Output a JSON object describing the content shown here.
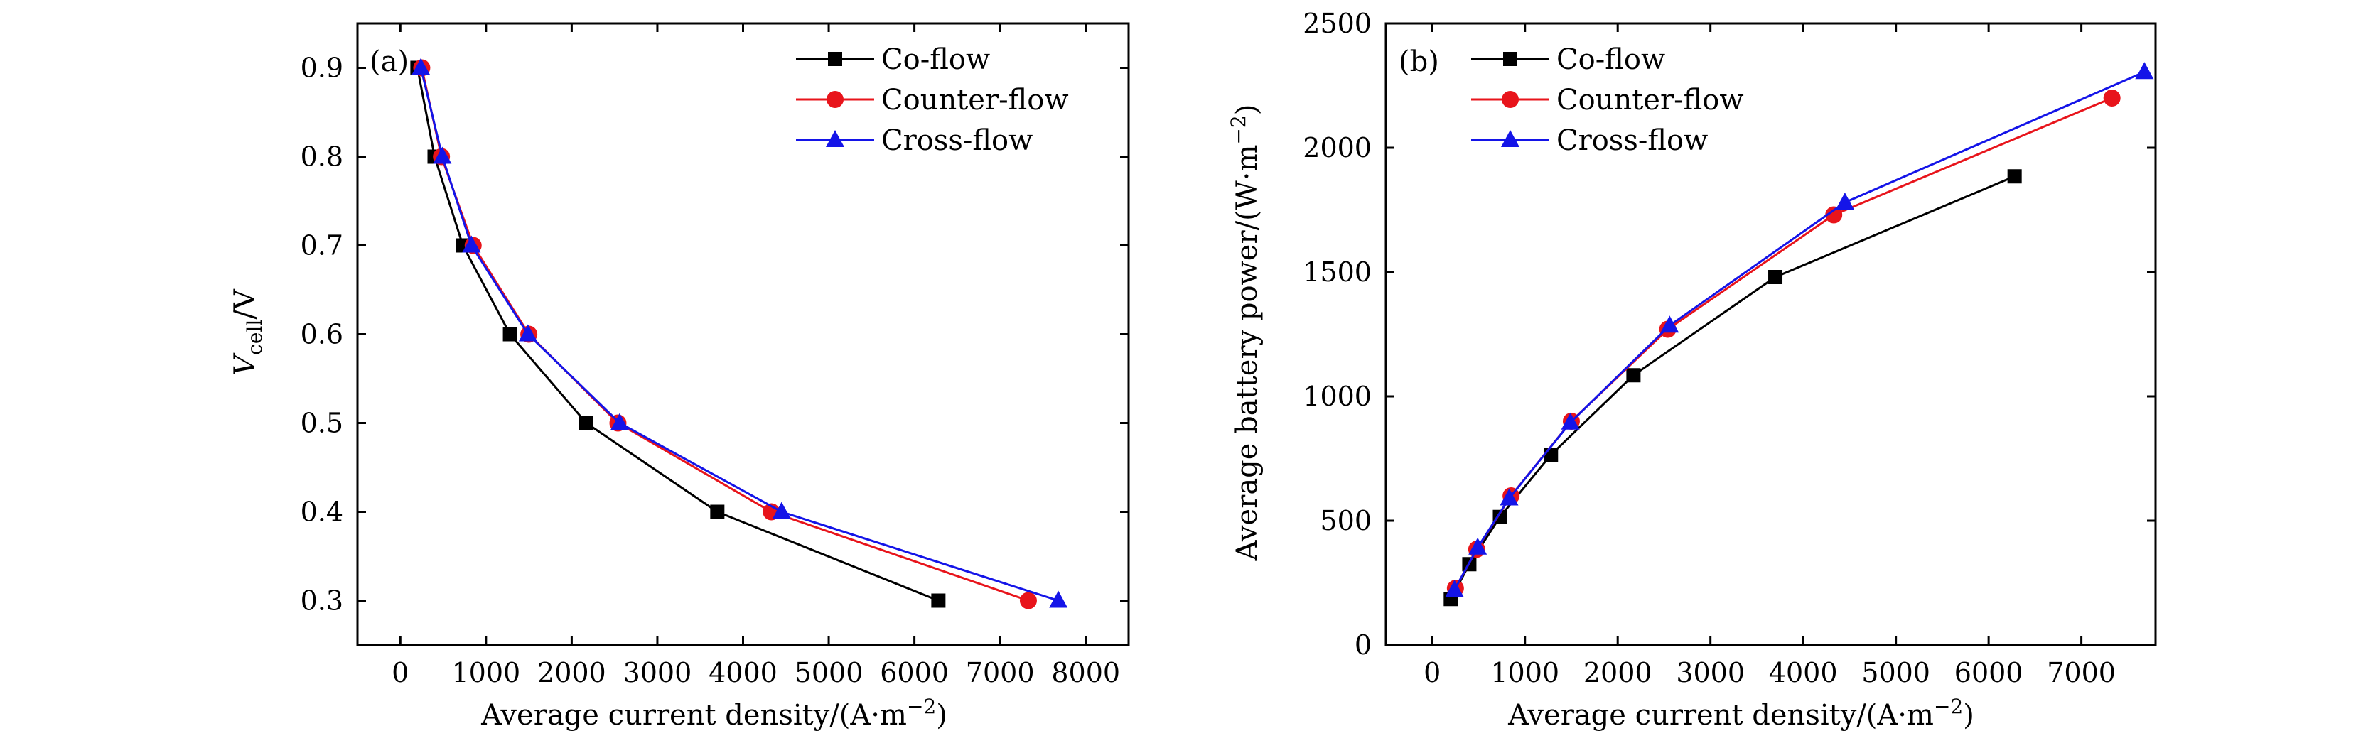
{
  "chart_data": [
    {
      "type": "line",
      "panel_label": "(a)",
      "xlabel": "Average current density/(A·m",
      "xlabel_sup": "−2",
      "xlabel_end": ")",
      "ylabel_main": "V",
      "ylabel_sub": "cell",
      "ylabel_end": "/V",
      "xlim": [
        -500,
        8500
      ],
      "ylim": [
        0.25,
        0.95
      ],
      "xticks": [
        0,
        1000,
        2000,
        3000,
        4000,
        5000,
        6000,
        7000,
        8000
      ],
      "yticks": [
        0.3,
        0.4,
        0.5,
        0.6,
        0.7,
        0.8,
        0.9
      ],
      "xtick_labels": [
        "0",
        "1000",
        "2000",
        "3000",
        "4000",
        "5000",
        "6000",
        "7000",
        "8000"
      ],
      "ytick_labels": [
        "0.3",
        "0.4",
        "0.5",
        "0.6",
        "0.7",
        "0.8",
        "0.9"
      ],
      "legend_position": "top-right",
      "series": [
        {
          "name": "Co-flow",
          "color": "#000000",
          "marker": "square",
          "points": [
            [
              200,
              0.9
            ],
            [
              400,
              0.8
            ],
            [
              730,
              0.7
            ],
            [
              1280,
              0.6
            ],
            [
              2170,
              0.5
            ],
            [
              3700,
              0.4
            ],
            [
              6280,
              0.3
            ]
          ]
        },
        {
          "name": "Counter-flow",
          "color": "#e8141b",
          "marker": "circle",
          "points": [
            [
              250,
              0.9
            ],
            [
              480,
              0.8
            ],
            [
              850,
              0.7
            ],
            [
              1500,
              0.6
            ],
            [
              2540,
              0.5
            ],
            [
              4330,
              0.4
            ],
            [
              7330,
              0.3
            ]
          ]
        },
        {
          "name": "Cross-flow",
          "color": "#1414e8",
          "marker": "triangle",
          "points": [
            [
              240,
              0.9
            ],
            [
              490,
              0.8
            ],
            [
              830,
              0.7
            ],
            [
              1490,
              0.6
            ],
            [
              2560,
              0.5
            ],
            [
              4450,
              0.4
            ],
            [
              7680,
              0.3
            ]
          ]
        }
      ]
    },
    {
      "type": "line",
      "panel_label": "(b)",
      "xlabel": "Average current density/(A·m",
      "xlabel_sup": "−2",
      "xlabel_end": ")",
      "ylabel_main": "Average battery power/(W·m",
      "ylabel_sup": "−2",
      "ylabel_end": ")",
      "xlim": [
        -500,
        7800
      ],
      "ylim": [
        0,
        2500
      ],
      "xticks": [
        0,
        1000,
        2000,
        3000,
        4000,
        5000,
        6000,
        7000
      ],
      "yticks": [
        0,
        500,
        1000,
        1500,
        2000,
        2500
      ],
      "xtick_labels": [
        "0",
        "1000",
        "2000",
        "3000",
        "4000",
        "5000",
        "6000",
        "7000"
      ],
      "ytick_labels": [
        "0",
        "500",
        "1000",
        "1500",
        "2000",
        "2500"
      ],
      "legend_position": "top-left",
      "series": [
        {
          "name": "Co-flow",
          "color": "#000000",
          "marker": "square",
          "points": [
            [
              200,
              185
            ],
            [
              400,
              325
            ],
            [
              730,
              515
            ],
            [
              1280,
              765
            ],
            [
              2170,
              1085
            ],
            [
              3700,
              1480
            ],
            [
              6280,
              1885
            ]
          ]
        },
        {
          "name": "Counter-flow",
          "color": "#e8141b",
          "marker": "circle",
          "points": [
            [
              250,
              228
            ],
            [
              480,
              385
            ],
            [
              850,
              600
            ],
            [
              1500,
              900
            ],
            [
              2540,
              1270
            ],
            [
              4330,
              1730
            ],
            [
              7330,
              2200
            ]
          ]
        },
        {
          "name": "Cross-flow",
          "color": "#1414e8",
          "marker": "triangle",
          "points": [
            [
              240,
              222
            ],
            [
              490,
              392
            ],
            [
              830,
              590
            ],
            [
              1490,
              895
            ],
            [
              2560,
              1285
            ],
            [
              4450,
              1780
            ],
            [
              7680,
              2305
            ]
          ]
        }
      ]
    }
  ]
}
